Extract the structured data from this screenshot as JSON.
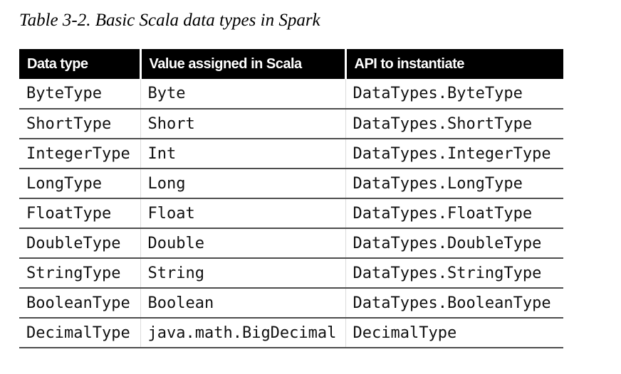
{
  "caption": "Table 3-2. Basic Scala data types in Spark",
  "table": {
    "columns": [
      "Data type",
      "Value assigned in Scala",
      "API to instantiate"
    ],
    "rows": [
      [
        "ByteType",
        "Byte",
        "DataTypes.ByteType"
      ],
      [
        "ShortType",
        "Short",
        "DataTypes.ShortType"
      ],
      [
        "IntegerType",
        "Int",
        "DataTypes.IntegerType"
      ],
      [
        "LongType",
        "Long",
        "DataTypes.LongType"
      ],
      [
        "FloatType",
        "Float",
        "DataTypes.FloatType"
      ],
      [
        "DoubleType",
        "Double",
        "DataTypes.DoubleType"
      ],
      [
        "StringType",
        "String",
        "DataTypes.StringType"
      ],
      [
        "BooleanType",
        "Boolean",
        "DataTypes.BooleanType"
      ],
      [
        "DecimalType",
        "java.math.BigDecimal",
        "DecimalType"
      ]
    ]
  },
  "colors": {
    "page_background": "#ffffff",
    "header_background": "#000000",
    "header_text": "#ffffff",
    "body_text": "#111111",
    "row_divider": "#4d4d4d",
    "column_divider": "#dcdcdc"
  }
}
